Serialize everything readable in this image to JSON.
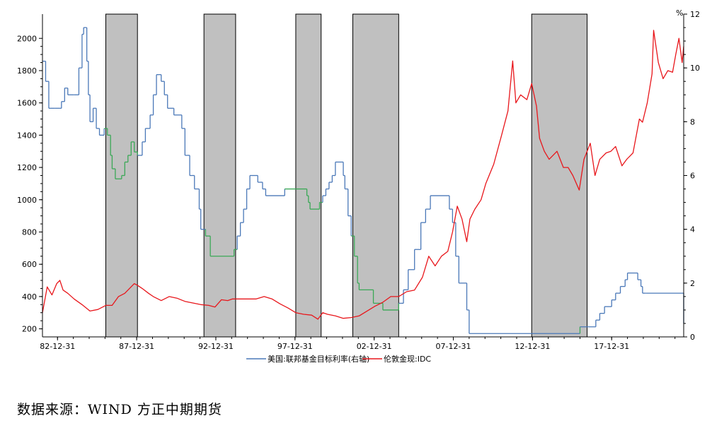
{
  "chart_data": {
    "type": "line",
    "x_tick_labels": [
      "82-12-31",
      "87-12-31",
      "92-12-31",
      "97-12-31",
      "02-12-31",
      "07-12-31",
      "12-12-31",
      "17-12-31"
    ],
    "y_left": {
      "ticks": [
        200,
        400,
        600,
        800,
        1000,
        1200,
        1400,
        1600,
        1800,
        2000
      ],
      "range": [
        150,
        2150
      ]
    },
    "y_right": {
      "unit_label": "%",
      "ticks": [
        0,
        2,
        4,
        6,
        8,
        10,
        12
      ],
      "range": [
        0,
        12
      ]
    },
    "shaded_periods": [
      {
        "start": 1986.0,
        "end": 1988.0
      },
      {
        "start": 1992.2,
        "end": 1994.2
      },
      {
        "start": 1998.0,
        "end": 1999.6
      },
      {
        "start": 2001.6,
        "end": 2004.5
      },
      {
        "start": 2012.9,
        "end": 2016.4
      }
    ],
    "series": [
      {
        "name": "美国:联邦基金目标利率(右轴)",
        "axis": "right",
        "color": "#4a78b8",
        "highlight_color": "#3aa856",
        "style": "step",
        "points": [
          [
            1982.0,
            10.25
          ],
          [
            1982.2,
            9.5
          ],
          [
            1982.4,
            8.5
          ],
          [
            1982.8,
            8.5
          ],
          [
            1983.2,
            8.75
          ],
          [
            1983.4,
            9.25
          ],
          [
            1983.6,
            9.0
          ],
          [
            1984.0,
            9.0
          ],
          [
            1984.3,
            10.0
          ],
          [
            1984.5,
            11.25
          ],
          [
            1984.6,
            11.5
          ],
          [
            1984.8,
            10.25
          ],
          [
            1984.9,
            9.0
          ],
          [
            1985.0,
            8.0
          ],
          [
            1985.2,
            8.5
          ],
          [
            1985.4,
            7.75
          ],
          [
            1985.6,
            7.5
          ],
          [
            1985.9,
            7.75
          ],
          [
            1986.1,
            7.5
          ],
          [
            1986.3,
            6.75
          ],
          [
            1986.4,
            6.25
          ],
          [
            1986.6,
            5.875
          ],
          [
            1987.0,
            6.0
          ],
          [
            1987.2,
            6.5
          ],
          [
            1987.4,
            6.75
          ],
          [
            1987.6,
            7.25
          ],
          [
            1987.8,
            6.875
          ],
          [
            1988.0,
            6.75
          ],
          [
            1988.3,
            7.25
          ],
          [
            1988.5,
            7.75
          ],
          [
            1988.8,
            8.25
          ],
          [
            1989.0,
            9.0
          ],
          [
            1989.2,
            9.75
          ],
          [
            1989.5,
            9.5
          ],
          [
            1989.7,
            9.0
          ],
          [
            1989.9,
            8.5
          ],
          [
            1990.3,
            8.25
          ],
          [
            1990.8,
            7.75
          ],
          [
            1991.0,
            6.75
          ],
          [
            1991.3,
            6.0
          ],
          [
            1991.6,
            5.5
          ],
          [
            1991.9,
            4.75
          ],
          [
            1992.0,
            4.0
          ],
          [
            1992.3,
            3.75
          ],
          [
            1992.6,
            3.0
          ],
          [
            1994.1,
            3.25
          ],
          [
            1994.3,
            3.75
          ],
          [
            1994.5,
            4.25
          ],
          [
            1994.7,
            4.75
          ],
          [
            1994.9,
            5.5
          ],
          [
            1995.1,
            6.0
          ],
          [
            1995.6,
            5.75
          ],
          [
            1995.9,
            5.5
          ],
          [
            1996.1,
            5.25
          ],
          [
            1997.3,
            5.5
          ],
          [
            1998.7,
            5.25
          ],
          [
            1998.8,
            5.0
          ],
          [
            1998.9,
            4.75
          ],
          [
            1999.5,
            5.0
          ],
          [
            1999.7,
            5.25
          ],
          [
            1999.9,
            5.5
          ],
          [
            2000.1,
            5.75
          ],
          [
            2000.3,
            6.0
          ],
          [
            2000.5,
            6.5
          ],
          [
            2001.0,
            6.0
          ],
          [
            2001.1,
            5.5
          ],
          [
            2001.3,
            4.5
          ],
          [
            2001.5,
            3.75
          ],
          [
            2001.7,
            3.0
          ],
          [
            2001.9,
            2.0
          ],
          [
            2002.0,
            1.75
          ],
          [
            2002.9,
            1.25
          ],
          [
            2003.5,
            1.0
          ],
          [
            2004.5,
            1.25
          ],
          [
            2004.8,
            1.75
          ],
          [
            2005.1,
            2.5
          ],
          [
            2005.5,
            3.25
          ],
          [
            2005.9,
            4.25
          ],
          [
            2006.2,
            4.75
          ],
          [
            2006.5,
            5.25
          ],
          [
            2007.7,
            4.75
          ],
          [
            2007.9,
            4.25
          ],
          [
            2008.1,
            3.0
          ],
          [
            2008.3,
            2.0
          ],
          [
            2008.8,
            1.0
          ],
          [
            2008.95,
            0.125
          ],
          [
            2015.95,
            0.375
          ],
          [
            2016.95,
            0.625
          ],
          [
            2017.2,
            0.875
          ],
          [
            2017.5,
            1.125
          ],
          [
            2017.95,
            1.375
          ],
          [
            2018.2,
            1.625
          ],
          [
            2018.5,
            1.875
          ],
          [
            2018.8,
            2.125
          ],
          [
            2018.95,
            2.375
          ],
          [
            2019.6,
            2.125
          ],
          [
            2019.8,
            1.875
          ],
          [
            2019.9,
            1.625
          ],
          [
            2020.1,
            1.625
          ],
          [
            2022.5,
            0.5
          ]
        ]
      },
      {
        "name": "伦敦金现:IDC",
        "axis": "left",
        "color": "#e8161b",
        "style": "line",
        "points": [
          [
            1982.0,
            300
          ],
          [
            1982.3,
            460
          ],
          [
            1982.6,
            410
          ],
          [
            1982.9,
            480
          ],
          [
            1983.1,
            500
          ],
          [
            1983.3,
            440
          ],
          [
            1983.6,
            420
          ],
          [
            1984.0,
            385
          ],
          [
            1984.5,
            350
          ],
          [
            1985.0,
            310
          ],
          [
            1985.5,
            320
          ],
          [
            1986.0,
            345
          ],
          [
            1986.4,
            345
          ],
          [
            1986.8,
            400
          ],
          [
            1987.2,
            420
          ],
          [
            1987.5,
            450
          ],
          [
            1987.8,
            480
          ],
          [
            1988.0,
            470
          ],
          [
            1988.3,
            450
          ],
          [
            1988.7,
            420
          ],
          [
            1989.0,
            400
          ],
          [
            1989.5,
            375
          ],
          [
            1990.0,
            400
          ],
          [
            1990.5,
            390
          ],
          [
            1991.0,
            370
          ],
          [
            1991.5,
            360
          ],
          [
            1992.0,
            350
          ],
          [
            1992.5,
            345
          ],
          [
            1992.9,
            335
          ],
          [
            1993.3,
            380
          ],
          [
            1993.7,
            375
          ],
          [
            1994.0,
            385
          ],
          [
            1994.5,
            385
          ],
          [
            1995.0,
            385
          ],
          [
            1995.5,
            385
          ],
          [
            1996.0,
            400
          ],
          [
            1996.5,
            385
          ],
          [
            1997.0,
            355
          ],
          [
            1997.5,
            330
          ],
          [
            1998.0,
            300
          ],
          [
            1998.5,
            290
          ],
          [
            1999.0,
            285
          ],
          [
            1999.4,
            260
          ],
          [
            1999.7,
            300
          ],
          [
            2000.0,
            290
          ],
          [
            2000.5,
            280
          ],
          [
            2001.0,
            265
          ],
          [
            2001.5,
            270
          ],
          [
            2002.0,
            280
          ],
          [
            2002.5,
            310
          ],
          [
            2003.0,
            340
          ],
          [
            2003.5,
            365
          ],
          [
            2004.0,
            400
          ],
          [
            2004.5,
            400
          ],
          [
            2005.0,
            430
          ],
          [
            2005.5,
            440
          ],
          [
            2006.0,
            520
          ],
          [
            2006.4,
            650
          ],
          [
            2006.8,
            590
          ],
          [
            2007.2,
            650
          ],
          [
            2007.6,
            680
          ],
          [
            2007.9,
            800
          ],
          [
            2008.2,
            960
          ],
          [
            2008.5,
            880
          ],
          [
            2008.8,
            740
          ],
          [
            2009.0,
            880
          ],
          [
            2009.3,
            940
          ],
          [
            2009.7,
            1000
          ],
          [
            2010.0,
            1100
          ],
          [
            2010.5,
            1220
          ],
          [
            2011.0,
            1400
          ],
          [
            2011.4,
            1550
          ],
          [
            2011.7,
            1860
          ],
          [
            2011.9,
            1600
          ],
          [
            2012.2,
            1650
          ],
          [
            2012.6,
            1620
          ],
          [
            2012.9,
            1720
          ],
          [
            2013.2,
            1580
          ],
          [
            2013.4,
            1380
          ],
          [
            2013.7,
            1300
          ],
          [
            2014.0,
            1250
          ],
          [
            2014.5,
            1300
          ],
          [
            2014.9,
            1200
          ],
          [
            2015.2,
            1200
          ],
          [
            2015.5,
            1150
          ],
          [
            2015.9,
            1060
          ],
          [
            2016.2,
            1250
          ],
          [
            2016.6,
            1350
          ],
          [
            2016.9,
            1150
          ],
          [
            2017.2,
            1250
          ],
          [
            2017.6,
            1290
          ],
          [
            2017.9,
            1300
          ],
          [
            2018.2,
            1330
          ],
          [
            2018.6,
            1210
          ],
          [
            2018.9,
            1250
          ],
          [
            2019.3,
            1290
          ],
          [
            2019.7,
            1500
          ],
          [
            2019.9,
            1480
          ],
          [
            2020.2,
            1600
          ],
          [
            2020.5,
            1780
          ],
          [
            2020.6,
            2050
          ],
          [
            2020.9,
            1850
          ],
          [
            2021.2,
            1750
          ],
          [
            2021.5,
            1800
          ],
          [
            2021.8,
            1790
          ],
          [
            2022.0,
            1900
          ],
          [
            2022.2,
            2000
          ],
          [
            2022.4,
            1850
          ],
          [
            2022.5,
            1950
          ]
        ]
      }
    ]
  },
  "footer": {
    "source": "数据来源：WIND 方正中期期货"
  }
}
